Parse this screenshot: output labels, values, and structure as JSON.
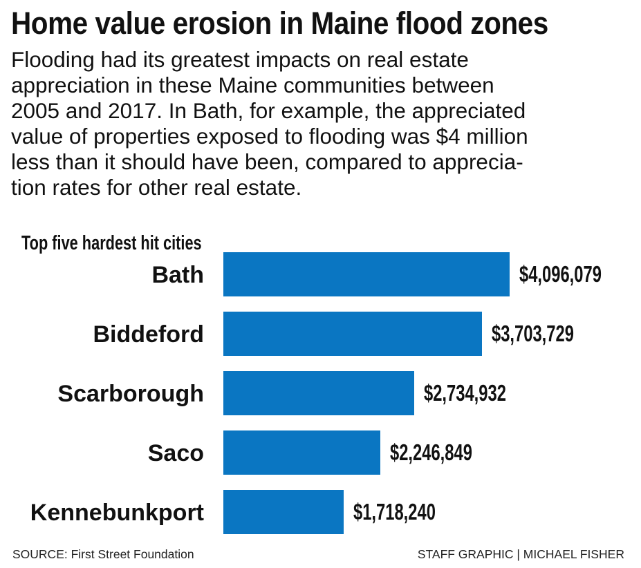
{
  "title": "Home value erosion in Maine flood zones",
  "subtitle_lines": [
    "Flooding had its greatest impacts on real estate",
    "appreciation in these Maine communities between",
    "2005 and 2017. In Bath, for example, the appreciated",
    "value of properties exposed to flooding was $4 million",
    "less than it should have been, compared to apprecia-",
    "tion rates for other real estate."
  ],
  "chart_data": {
    "type": "bar",
    "orientation": "horizontal",
    "title": "Top five hardest hit cities",
    "categories": [
      "Bath",
      "Biddeford",
      "Scarborough",
      "Saco",
      "Kennebunkport"
    ],
    "values": [
      4096079,
      3703729,
      2734932,
      2246849,
      1718240
    ],
    "value_labels": [
      "$4,096,079",
      "$3,703,729",
      "$2,734,932",
      "$2,246,849",
      "$1,718,240"
    ],
    "xlim": [
      0,
      4096079
    ],
    "color": "#0a76c2",
    "grid": false
  },
  "footer": {
    "source": "SOURCE: First Street Foundation",
    "credit": "STAFF GRAPHIC | MICHAEL FISHER"
  }
}
